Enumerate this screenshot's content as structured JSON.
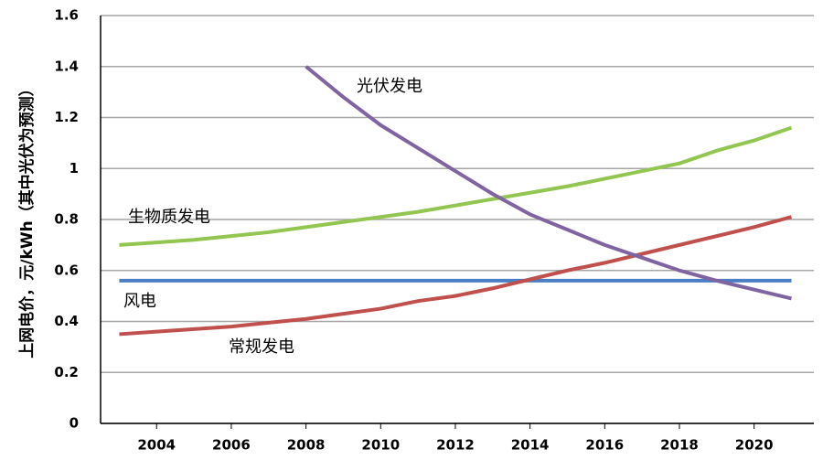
{
  "chart_data": {
    "type": "line",
    "y_label": "上网电价，元/kWh（其中光伏为预测）",
    "x": [
      2003,
      2004,
      2005,
      2006,
      2007,
      2008,
      2009,
      2010,
      2011,
      2012,
      2013,
      2014,
      2015,
      2016,
      2017,
      2018,
      2019,
      2020,
      2021
    ],
    "series": [
      {
        "name": "生物质发电",
        "color": "#92c650",
        "values": [
          0.7,
          0.71,
          0.72,
          0.735,
          0.75,
          0.77,
          0.79,
          0.81,
          0.83,
          0.855,
          0.88,
          0.905,
          0.93,
          0.96,
          0.99,
          1.02,
          1.07,
          1.11,
          1.16
        ]
      },
      {
        "name": "风电",
        "color": "#4a7fc4",
        "values": [
          0.56,
          0.56,
          0.56,
          0.56,
          0.56,
          0.56,
          0.56,
          0.56,
          0.56,
          0.56,
          0.56,
          0.56,
          0.56,
          0.56,
          0.56,
          0.56,
          0.56,
          0.56,
          0.56
        ]
      },
      {
        "name": "常规发电",
        "color": "#c0504d",
        "values": [
          0.35,
          0.36,
          0.37,
          0.38,
          0.395,
          0.41,
          0.43,
          0.45,
          0.48,
          0.5,
          0.53,
          0.565,
          0.6,
          0.63,
          0.665,
          0.7,
          0.735,
          0.77,
          0.81
        ]
      },
      {
        "name": "光伏发电",
        "color": "#8064a2",
        "values": [
          null,
          null,
          null,
          null,
          null,
          1.4,
          1.28,
          1.17,
          1.08,
          0.99,
          0.9,
          0.82,
          0.76,
          0.7,
          0.65,
          0.6,
          0.56,
          0.525,
          0.49
        ]
      }
    ],
    "xlim": [
      2002.5,
      2021.6
    ],
    "xticks": [
      2004,
      2006,
      2008,
      2010,
      2012,
      2014,
      2016,
      2018,
      2020
    ],
    "ylim": [
      0,
      1.6
    ],
    "yticks": [
      0,
      0.2,
      0.4,
      0.6,
      0.8,
      1,
      1.2,
      1.4,
      1.6
    ],
    "grid": true
  }
}
